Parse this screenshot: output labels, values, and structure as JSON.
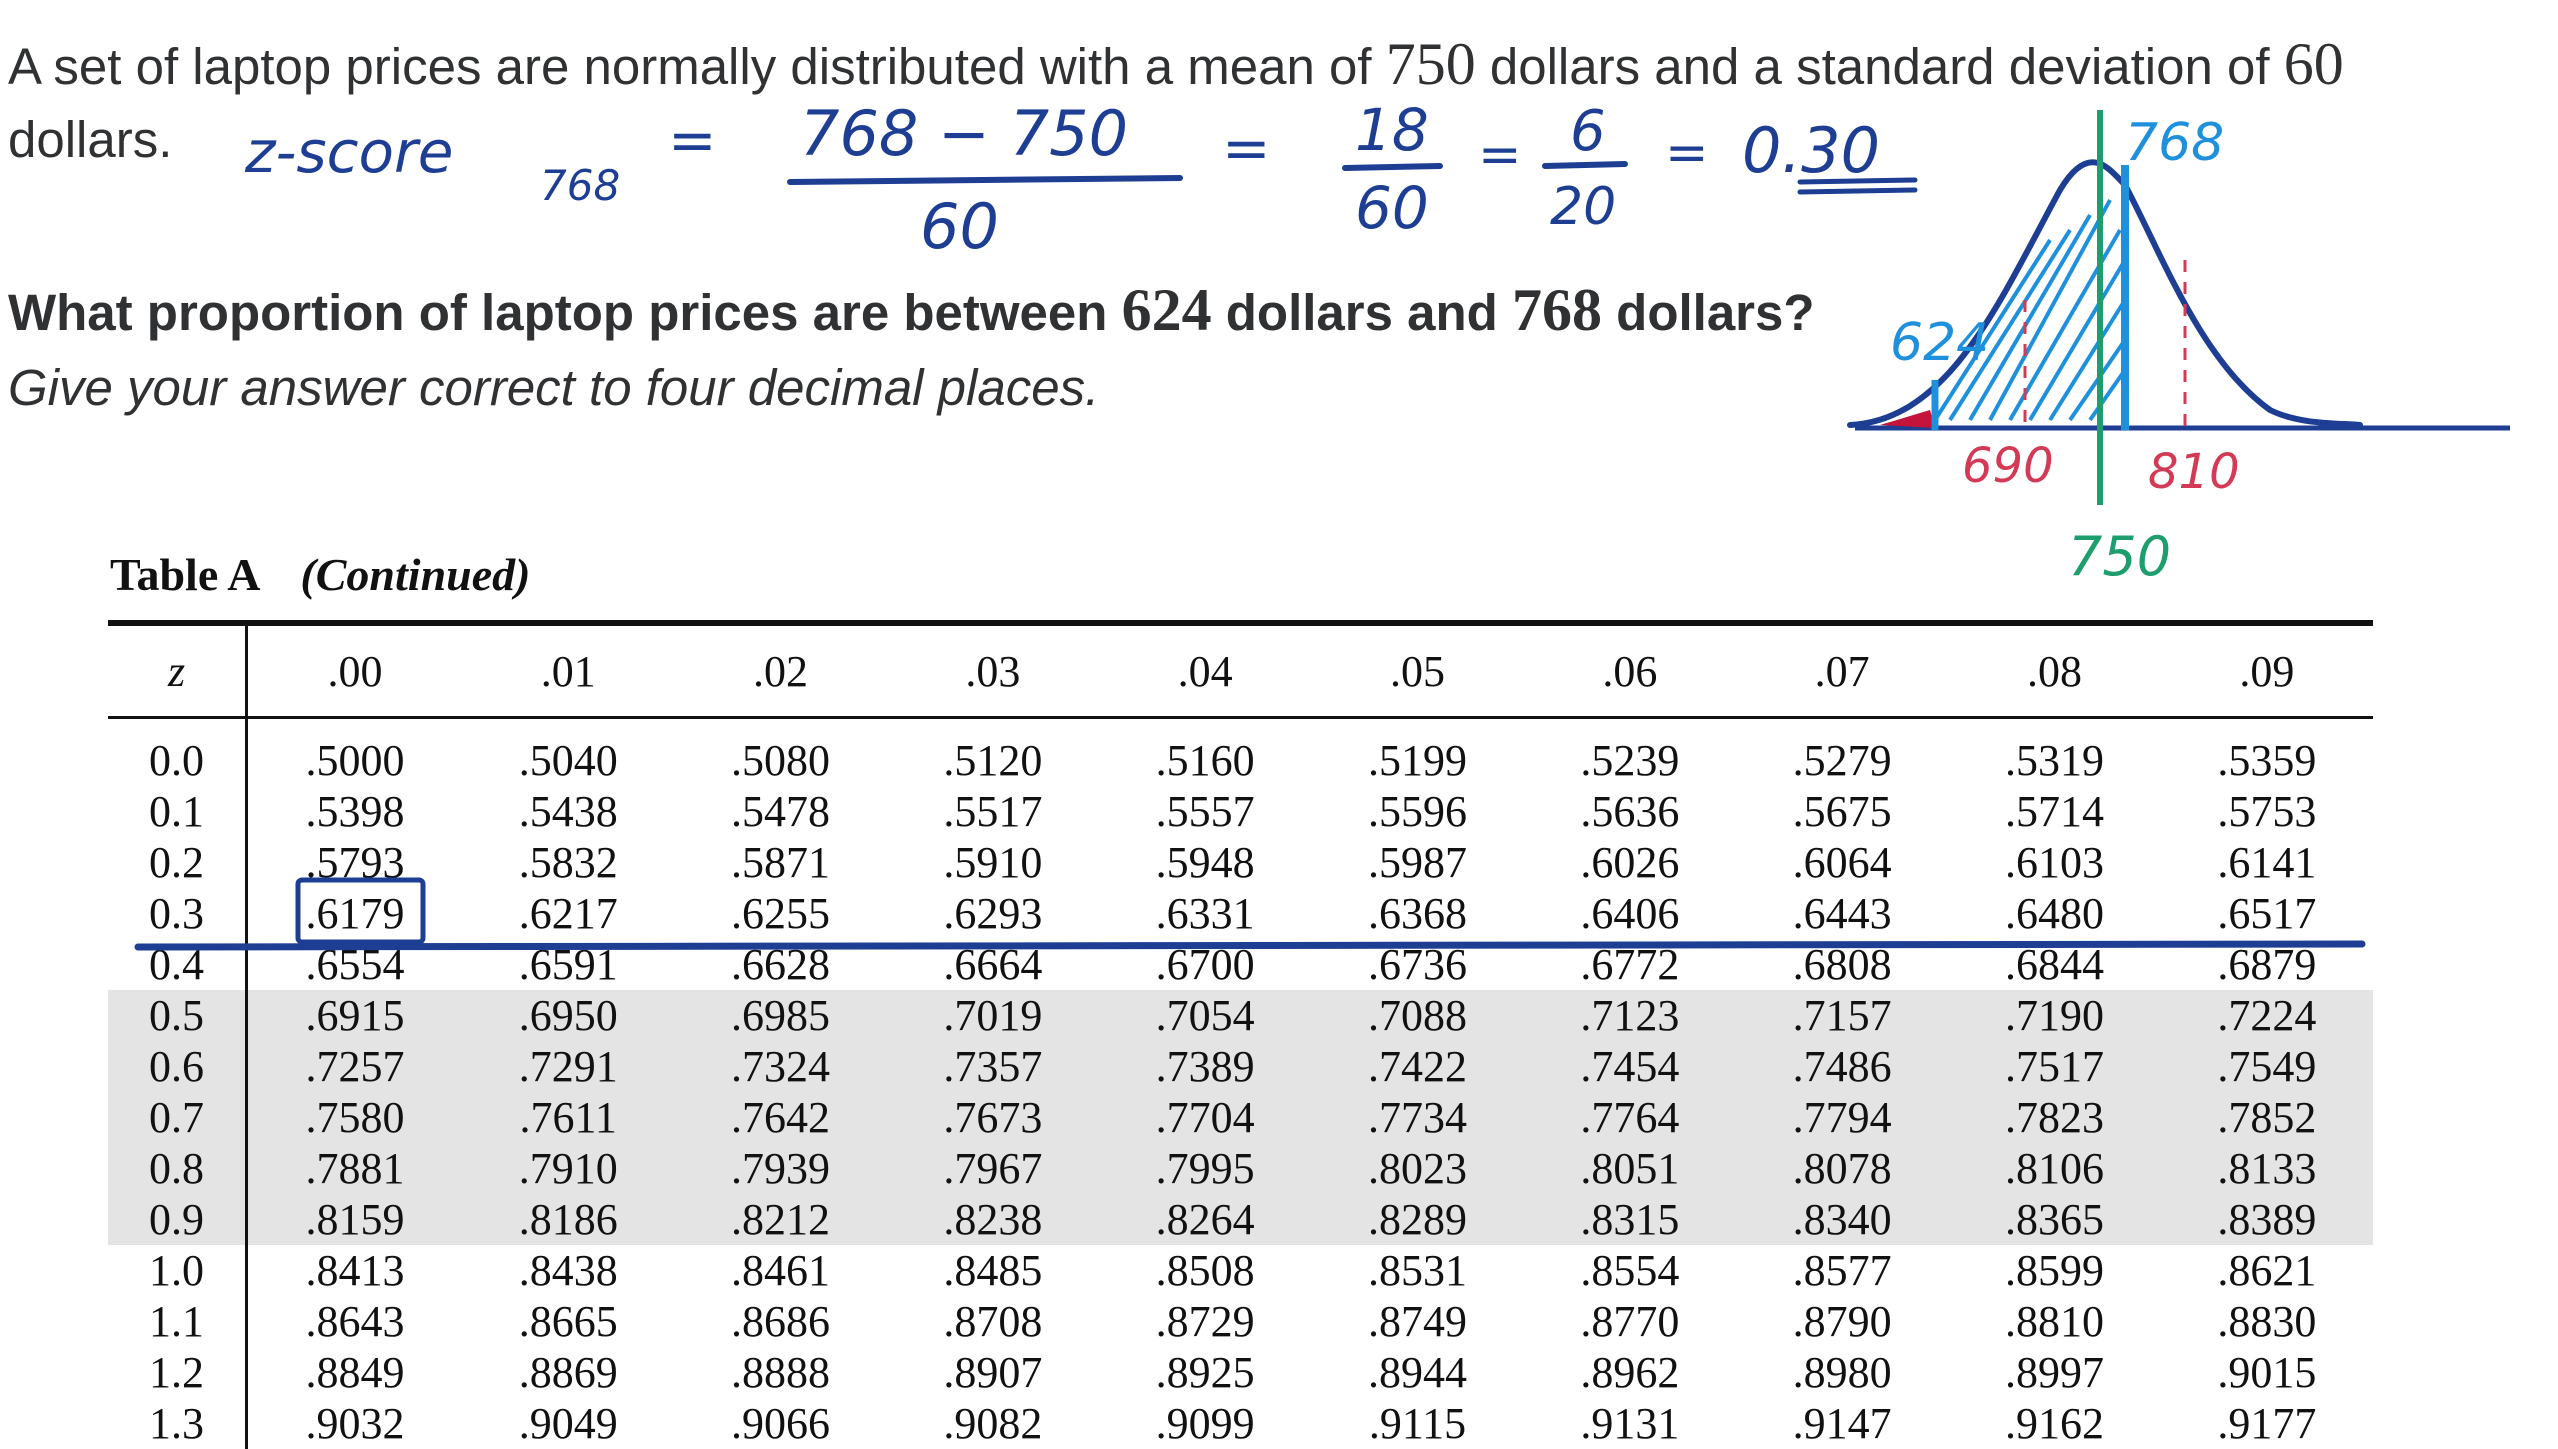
{
  "question": {
    "line1_prefix": "A set of laptop prices are normally distributed with a mean of ",
    "mean": "750",
    "line1_mid": " dollars and a standard deviation of ",
    "sd": "60",
    "line2": "dollars.",
    "prompt_prefix": "What proportion of laptop prices are between ",
    "low": "624",
    "prompt_mid": " dollars and ",
    "high": "768",
    "prompt_suffix": " dollars?",
    "instruction": "Give your answer correct to four decimal places."
  },
  "handwriting": {
    "z_label": "z-score",
    "z_sub": "768",
    "eq": "=",
    "num1": "768 − 750",
    "den1": "60",
    "num2": "18",
    "den2": "60",
    "num3": "6",
    "den3": "20",
    "result": "0.30",
    "curve_labels": {
      "high": "768",
      "low": "624",
      "minus_sd": "690",
      "plus_sd": "810",
      "mean": "750"
    }
  },
  "colors": {
    "ink_dark": "#1d3e93",
    "ink_cyan": "#1e90dc",
    "ink_red": "#d33a55",
    "ink_green": "#1e9e6e",
    "shade": "#e4e4e4"
  },
  "table": {
    "title": "Table A",
    "continued": "(Continued)",
    "z_header": "z",
    "col_headers": [
      ".00",
      ".01",
      ".02",
      ".03",
      ".04",
      ".05",
      ".06",
      ".07",
      ".08",
      ".09"
    ],
    "rows": [
      {
        "z": "0.0",
        "v": [
          ".5000",
          ".5040",
          ".5080",
          ".5120",
          ".5160",
          ".5199",
          ".5239",
          ".5279",
          ".5319",
          ".5359"
        ]
      },
      {
        "z": "0.1",
        "v": [
          ".5398",
          ".5438",
          ".5478",
          ".5517",
          ".5557",
          ".5596",
          ".5636",
          ".5675",
          ".5714",
          ".5753"
        ]
      },
      {
        "z": "0.2",
        "v": [
          ".5793",
          ".5832",
          ".5871",
          ".5910",
          ".5948",
          ".5987",
          ".6026",
          ".6064",
          ".6103",
          ".6141"
        ]
      },
      {
        "z": "0.3",
        "v": [
          ".6179",
          ".6217",
          ".6255",
          ".6293",
          ".6331",
          ".6368",
          ".6406",
          ".6443",
          ".6480",
          ".6517"
        ]
      },
      {
        "z": "0.4",
        "v": [
          ".6554",
          ".6591",
          ".6628",
          ".6664",
          ".6700",
          ".6736",
          ".6772",
          ".6808",
          ".6844",
          ".6879"
        ]
      },
      {
        "z": "0.5",
        "v": [
          ".6915",
          ".6950",
          ".6985",
          ".7019",
          ".7054",
          ".7088",
          ".7123",
          ".7157",
          ".7190",
          ".7224"
        ]
      },
      {
        "z": "0.6",
        "v": [
          ".7257",
          ".7291",
          ".7324",
          ".7357",
          ".7389",
          ".7422",
          ".7454",
          ".7486",
          ".7517",
          ".7549"
        ]
      },
      {
        "z": "0.7",
        "v": [
          ".7580",
          ".7611",
          ".7642",
          ".7673",
          ".7704",
          ".7734",
          ".7764",
          ".7794",
          ".7823",
          ".7852"
        ]
      },
      {
        "z": "0.8",
        "v": [
          ".7881",
          ".7910",
          ".7939",
          ".7967",
          ".7995",
          ".8023",
          ".8051",
          ".8078",
          ".8106",
          ".8133"
        ]
      },
      {
        "z": "0.9",
        "v": [
          ".8159",
          ".8186",
          ".8212",
          ".8238",
          ".8264",
          ".8289",
          ".8315",
          ".8340",
          ".8365",
          ".8389"
        ]
      },
      {
        "z": "1.0",
        "v": [
          ".8413",
          ".8438",
          ".8461",
          ".8485",
          ".8508",
          ".8531",
          ".8554",
          ".8577",
          ".8599",
          ".8621"
        ]
      },
      {
        "z": "1.1",
        "v": [
          ".8643",
          ".8665",
          ".8686",
          ".8708",
          ".8729",
          ".8749",
          ".8770",
          ".8790",
          ".8810",
          ".8830"
        ]
      },
      {
        "z": "1.2",
        "v": [
          ".8849",
          ".8869",
          ".8888",
          ".8907",
          ".8925",
          ".8944",
          ".8962",
          ".8980",
          ".8997",
          ".9015"
        ]
      },
      {
        "z": "1.3",
        "v": [
          ".9032",
          ".9049",
          ".9066",
          ".9082",
          ".9099",
          ".9115",
          ".9131",
          ".9147",
          ".9162",
          ".9177"
        ]
      }
    ],
    "shaded_rows": [
      "0.5",
      "0.6",
      "0.7",
      "0.8",
      "0.9"
    ],
    "boxed_cell": {
      "z": "0.3",
      "col": ".00"
    }
  }
}
